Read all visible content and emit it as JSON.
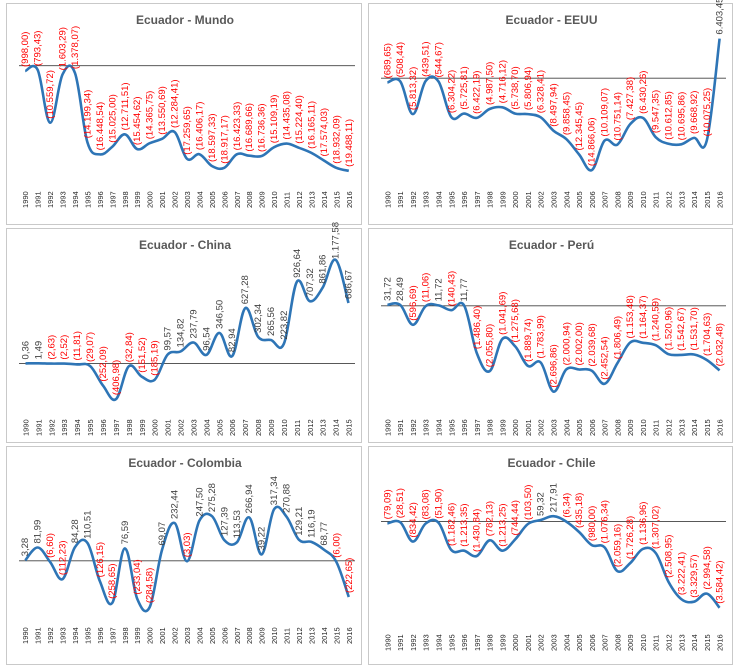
{
  "colors": {
    "line": "#2e75b6",
    "positive_label": "#404040",
    "negative_label": "#ff0000",
    "zero_line": "#404040",
    "title": "#595959"
  },
  "chart_data": [
    {
      "type": "line",
      "title": "Ecuador - Mundo",
      "xlabel": "",
      "ylabel": "",
      "grid": false,
      "legend": "none",
      "categories": [
        "1990",
        "1991",
        "1992",
        "1993",
        "1994",
        "1995",
        "1996",
        "1997",
        "1998",
        "1999",
        "2000",
        "2001",
        "2002",
        "2003",
        "2004",
        "2005",
        "2006",
        "2007",
        "2008",
        "2009",
        "2010",
        "2011",
        "2012",
        "2013",
        "2014",
        "2015",
        "2016"
      ],
      "series": [
        {
          "values": [
            -998.0,
            -793.43,
            -10559.72,
            -1603.29,
            -1378.07,
            -14199.34,
            -16448.54,
            -15025.0,
            -12711.51,
            -15454.62,
            -14365.75,
            -13550.69,
            -12284.41,
            -17259.65,
            -16406.17,
            -18597.33,
            -18917.17,
            -16423.33,
            -16689.66,
            -16736.36,
            -15109.19,
            -14435.08,
            -15224.4,
            -16165.11,
            -17574.03,
            -18932.09,
            -19488.11
          ]
        }
      ],
      "labels": [
        "(998,00)",
        "(793,43)",
        "(10.559,72)",
        "(1.603,29)",
        "(1.378,07)",
        "(14.199,34)",
        "(16.448,54)",
        "(15.025,00)",
        "(12.711,51)",
        "(15.454,62)",
        "(14.365,75)",
        "(13.550,69)",
        "(12.284,41)",
        "(17.259,65)",
        "(16.406,17)",
        "(18.597,33)",
        "(18.917,17)",
        "(16.423,33)",
        "(16.689,66)",
        "(16.736,36)",
        "(15.109,19)",
        "(14.435,08)",
        "(15.224,40)",
        "(16.165,11)",
        "(17.574,03)",
        "(18.932,09)",
        "(19.488,11)"
      ]
    },
    {
      "type": "line",
      "title": "Ecuador - EEUU",
      "xlabel": "",
      "ylabel": "",
      "grid": false,
      "legend": "none",
      "categories": [
        "1990",
        "1991",
        "1992",
        "1993",
        "1994",
        "1995",
        "1996",
        "1997",
        "1998",
        "1999",
        "2000",
        "2001",
        "2002",
        "2003",
        "2004",
        "2005",
        "2006",
        "2007",
        "2008",
        "2009",
        "2010",
        "2011",
        "2012",
        "2013",
        "2014",
        "2015",
        "2016"
      ],
      "series": [
        {
          "values": [
            -689.65,
            -508.44,
            -5813.32,
            -439.51,
            -544.67,
            -6304.22,
            -5725.81,
            -6422.19,
            -4987.5,
            -4716.12,
            -5738.7,
            -5806.94,
            -6328.41,
            -8497.94,
            -9858.45,
            -12345.45,
            -14866.06,
            -10109.07,
            -10751.14,
            -7427.38,
            -6430.26,
            -9547.35,
            -10612.85,
            -10695.86,
            -9668.92,
            -10075.25,
            6403.45
          ]
        }
      ],
      "labels": [
        "(689,65)",
        "(508,44)",
        "(5.813,32)",
        "(439,51)",
        "(544,67)",
        "(6.304,22)",
        "(5.725,81)",
        "(6.422,19)",
        "(4.987,50)",
        "(4.716,12)",
        "(5.738,70)",
        "(5.806,94)",
        "(6.328,41)",
        "(8.497,94)",
        "(9.858,45)",
        "(12.345,45)",
        "(14.866,06)",
        "(10.109,07)",
        "(10.751,14)",
        "(7.427,38)",
        "(6.430,26)",
        "(9.547,35)",
        "(10.612,85)",
        "(10.695,86)",
        "(9.668,92)",
        "(10.075,25)",
        "6.403,45"
      ]
    },
    {
      "type": "line",
      "title": "Ecuador - China",
      "xlabel": "",
      "ylabel": "",
      "grid": false,
      "legend": "none",
      "categories": [
        "1990",
        "1991",
        "1992",
        "1993",
        "1994",
        "1995",
        "1996",
        "1997",
        "1998",
        "1999",
        "2000",
        "2001",
        "2002",
        "2003",
        "2004",
        "2005",
        "2006",
        "2007",
        "2008",
        "2009",
        "2010",
        "2011",
        "2012",
        "2013",
        "2014",
        "2015"
      ],
      "series": [
        {
          "values": [
            0.36,
            1.49,
            -2.63,
            -2.52,
            -11.81,
            -29.07,
            -252.09,
            -406.98,
            -32.84,
            -151.52,
            -185.19,
            99.57,
            134.82,
            237.79,
            96.54,
            346.5,
            82.94,
            627.28,
            302.34,
            265.56,
            223.82,
            926.64,
            707.32,
            861.86,
            1177.58,
            686.67
          ]
        }
      ],
      "labels": [
        "0,36",
        "1,49",
        "(2,63)",
        "(2,52)",
        "(11,81)",
        "(29,07)",
        "(252,09)",
        "(406,98)",
        "(32,84)",
        "(151,52)",
        "(185,19)",
        "99,57",
        "134,82",
        "237,79",
        "96,54",
        "346,50",
        "82,94",
        "627,28",
        "302,34",
        "265,56",
        "223,82",
        "926,64",
        "707,32",
        "861,86",
        "1.177,58",
        "686,67"
      ]
    },
    {
      "type": "line",
      "title": "Ecuador - Perú",
      "xlabel": "",
      "ylabel": "",
      "grid": false,
      "legend": "none",
      "categories": [
        "1990",
        "1991",
        "1992",
        "1993",
        "1994",
        "1995",
        "1996",
        "1997",
        "1998",
        "1999",
        "2000",
        "2001",
        "2002",
        "2003",
        "2004",
        "2005",
        "2006",
        "2007",
        "2008",
        "2009",
        "2010",
        "2011",
        "2012",
        "2013",
        "2014",
        "2015",
        "2016"
      ],
      "series": [
        {
          "values": [
            31.72,
            28.49,
            -596.69,
            -11.06,
            11.72,
            -140.43,
            11.77,
            -1486.4,
            -2055.8,
            -1041.69,
            -1275.68,
            -1889.74,
            -1783.99,
            -2696.86,
            -2000.94,
            -2002.0,
            -2039.68,
            -2452.54,
            -1806.49,
            -1153.48,
            -1164.37,
            -1240.59,
            -1520.96,
            -1542.67,
            -1531.7,
            -1704.63,
            -2032.48
          ]
        }
      ],
      "labels": [
        "31,72",
        "28,49",
        "(596,69)",
        "(11,06)",
        "11,72",
        "(140,43)",
        "11,77",
        "(1.486,40)",
        "(2.055,80)",
        "(1.041,69)",
        "(1.275,68)",
        "(1.889,74)",
        "(1.783,99)",
        "(2.696,86)",
        "(2.000,94)",
        "(2.002,00)",
        "(2.039,68)",
        "(2.452,54)",
        "(1.806,49)",
        "(1.153,48)",
        "(1.164,37)",
        "(1.240,59)",
        "(1.520,96)",
        "(1.542,67)",
        "(1.531,70)",
        "(1.704,63)",
        "(2.032,48)"
      ]
    },
    {
      "type": "line",
      "title": "Ecuador - Colombia",
      "xlabel": "",
      "ylabel": "",
      "grid": false,
      "legend": "none",
      "categories": [
        "1990",
        "1991",
        "1992",
        "1993",
        "1994",
        "1995",
        "1996",
        "1997",
        "1998",
        "1999",
        "2000",
        "2001",
        "2002",
        "2003",
        "2004",
        "2005",
        "2006",
        "2007",
        "2008",
        "2009",
        "2010",
        "2011",
        "2012",
        "2013",
        "2014",
        "2015",
        "2016"
      ],
      "series": [
        {
          "values": [
            3.28,
            81.99,
            -6.6,
            -112.23,
            84.28,
            110.51,
            -126.15,
            -258.65,
            76.59,
            -233.04,
            -284.58,
            69.07,
            232.44,
            -3.03,
            247.5,
            275.28,
            127.39,
            113.53,
            266.94,
            39.22,
            317.34,
            270.88,
            129.21,
            116.19,
            68.77,
            -6.0,
            -222.65
          ]
        }
      ],
      "labels": [
        "3,28",
        "81,99",
        "(6,60)",
        "(112,23)",
        "84,28",
        "110,51",
        "(126,15)",
        "(258,65)",
        "76,59",
        "(233,04)",
        "(284,58)",
        "69,07",
        "232,44",
        "(3,03)",
        "247,50",
        "275,28",
        "127,39",
        "113,53",
        "266,94",
        "39,22",
        "317,34",
        "270,88",
        "129,21",
        "116,19",
        "68,77",
        "(6,00)",
        "(222,65)"
      ]
    },
    {
      "type": "line",
      "title": "Ecuador - Chile",
      "xlabel": "",
      "ylabel": "",
      "grid": false,
      "legend": "none",
      "categories": [
        "1990",
        "1991",
        "1992",
        "1993",
        "1994",
        "1995",
        "1996",
        "1997",
        "1998",
        "1999",
        "2000",
        "2001",
        "2002",
        "2003",
        "2004",
        "2005",
        "2006",
        "2007",
        "2008",
        "2009",
        "2010",
        "2011",
        "2012",
        "2013",
        "2014",
        "2015",
        "2016"
      ],
      "series": [
        {
          "values": [
            -79.09,
            -28.51,
            -834.42,
            -83.08,
            -51.9,
            -1182.46,
            -1213.35,
            -1430.84,
            -782.13,
            -1213.25,
            -744.44,
            -103.5,
            59.32,
            217.91,
            -6.34,
            -435.18,
            -980.0,
            -1076.34,
            -2059.16,
            -1726.28,
            -1136.96,
            -1307.02,
            -2508.95,
            -3222.41,
            -3329.57,
            -2994.58,
            -3584.42
          ]
        }
      ],
      "labels": [
        "(79,09)",
        "(28,51)",
        "(834,42)",
        "(83,08)",
        "(51,90)",
        "(1.182,46)",
        "(1.213,35)",
        "(1.430,84)",
        "(782,13)",
        "(1.213,25)",
        "(744,44)",
        "(103,50)",
        "59,32",
        "217,91",
        "(6,34)",
        "(435,18)",
        "(980,00)",
        "(1.076,34)",
        "(2.059,16)",
        "(1.726,28)",
        "(1.136,96)",
        "(1.307,02)",
        "(2.508,95)",
        "(3.222,41)",
        "(3.329,57)",
        "(2.994,58)",
        "(3.584,42)"
      ]
    }
  ]
}
